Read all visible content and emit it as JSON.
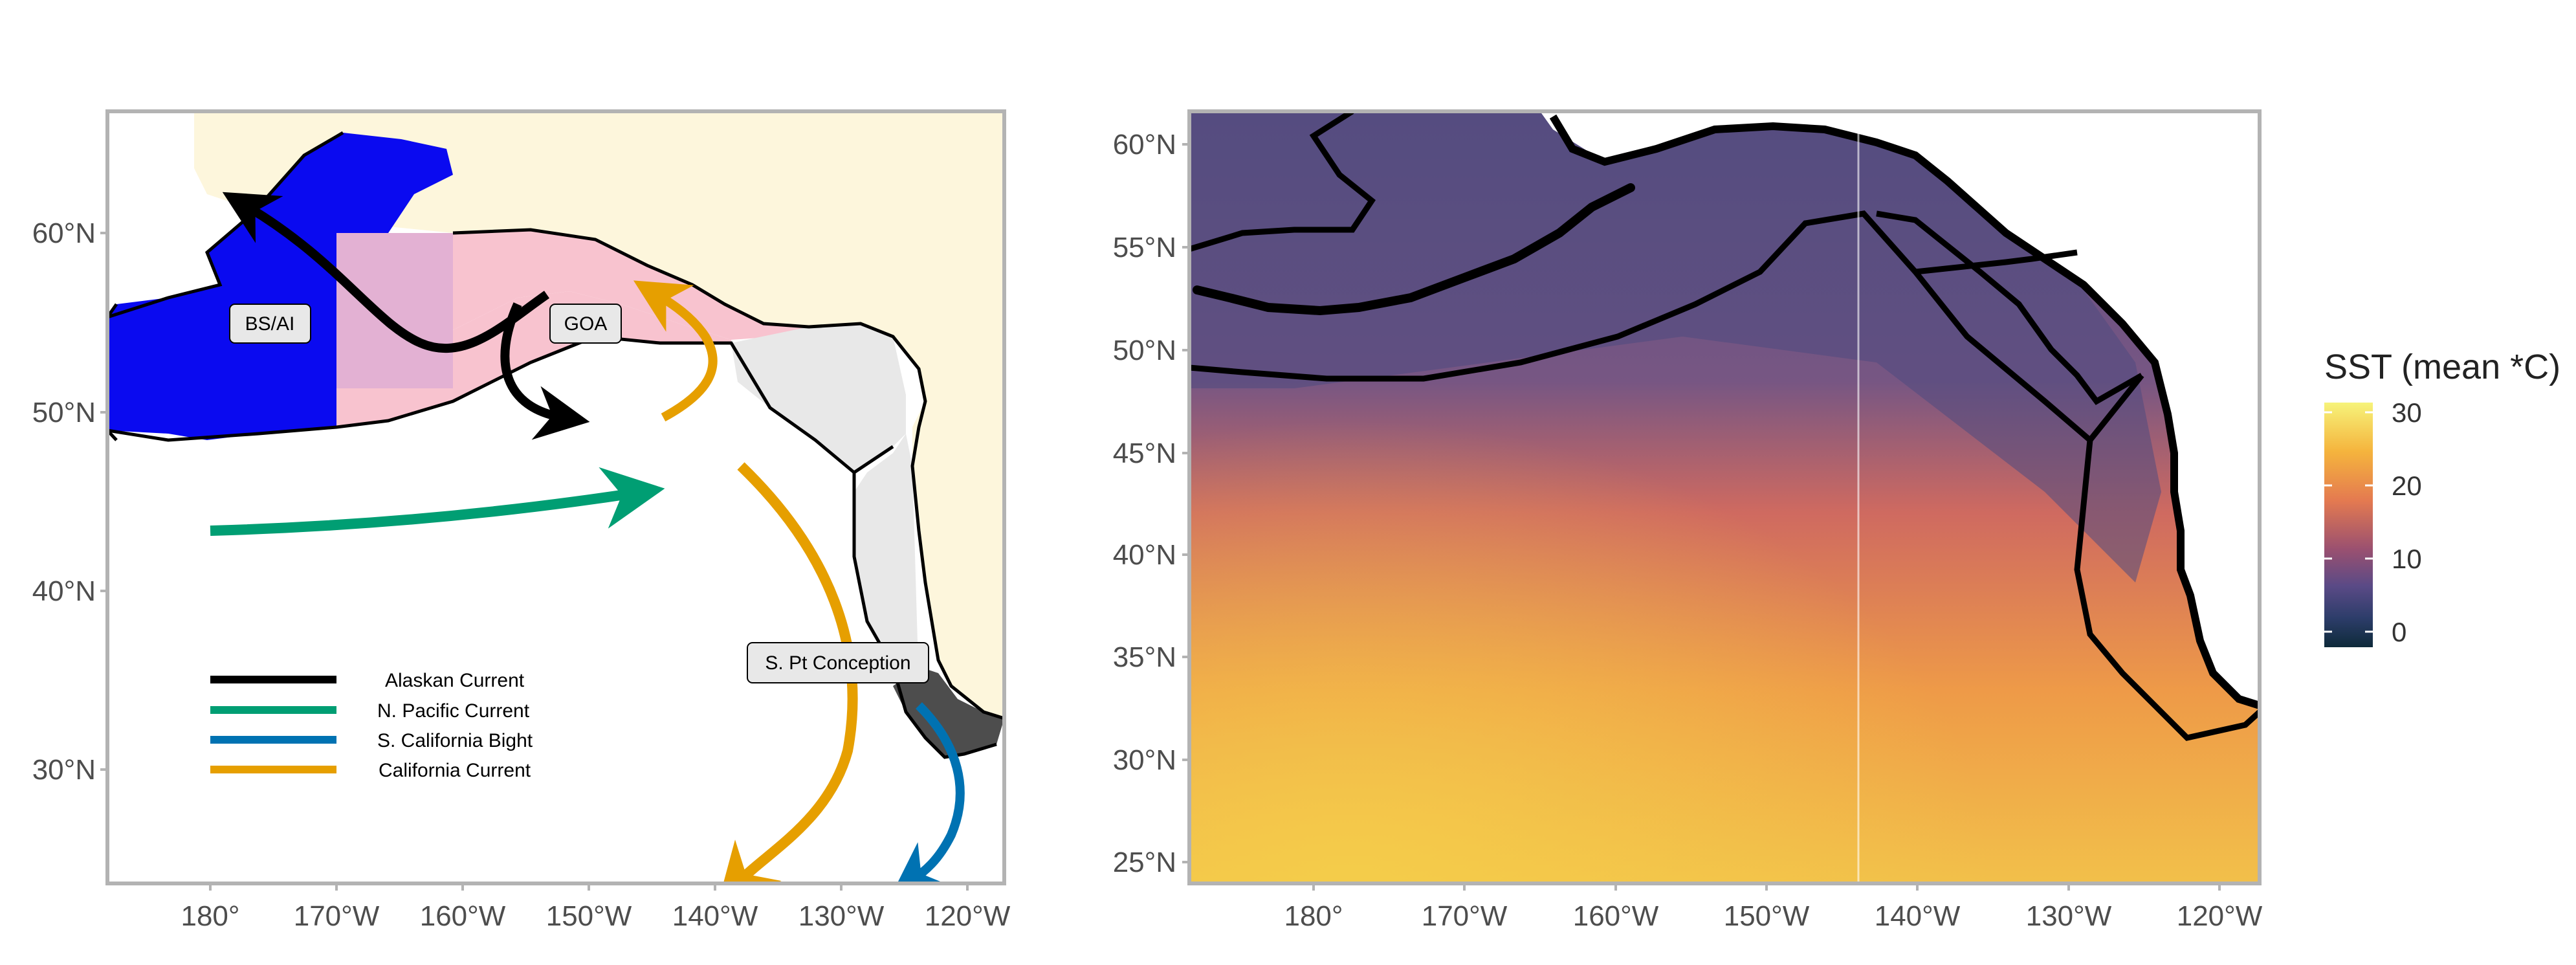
{
  "left_map": {
    "lat_labels": [
      "60°N",
      "50°N",
      "40°N",
      "30°N"
    ],
    "lon_labels": [
      "180°",
      "170°W",
      "160°W",
      "150°W",
      "140°W",
      "130°W",
      "120°W"
    ],
    "region_labels": {
      "bsai": "BS/AI",
      "goa": "GOA",
      "spc": "S. Pt Conception"
    },
    "legend": [
      {
        "label": "Alaskan Current",
        "color": "#000000"
      },
      {
        "label": "N. Pacific Current",
        "color": "#009E73"
      },
      {
        "label": "S. California Bight",
        "color": "#0072B2"
      },
      {
        "label": "California Current",
        "color": "#E69F00"
      }
    ],
    "colors": {
      "land": "#FDF6DC",
      "bsai": "#0A0AF0",
      "goa": "#F8C3CF",
      "cc_north": "#E8E8E8",
      "cc_south": "#4D4D4D"
    }
  },
  "right_map": {
    "lat_labels": [
      "60°N",
      "55°N",
      "50°N",
      "45°N",
      "40°N",
      "35°N",
      "30°N",
      "25°N"
    ],
    "lon_labels": [
      "180°",
      "170°W",
      "160°W",
      "150°W",
      "140°W",
      "130°W",
      "120°W"
    ]
  },
  "colorbar": {
    "title": "SST (mean *C)",
    "ticks": [
      "30",
      "20",
      "10",
      "0"
    ],
    "colors": [
      "#F6F37A",
      "#F5A23B",
      "#E06A52",
      "#9A5070",
      "#5A4A86",
      "#2D3D6A",
      "#0E2A3A"
    ]
  }
}
